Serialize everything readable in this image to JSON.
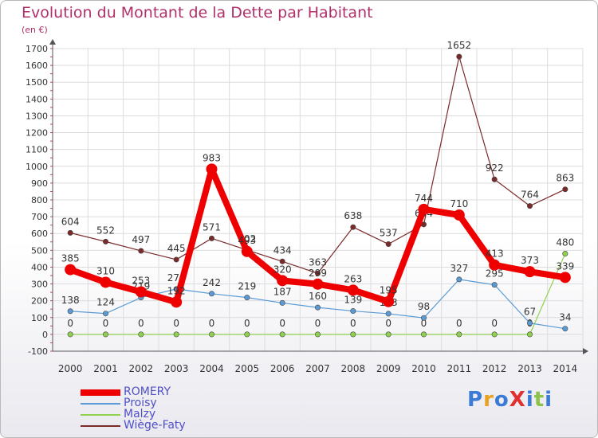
{
  "title": "Evolution du Montant de la Dette par Habitant",
  "subtitle": "(en €)",
  "logo": {
    "text": "ProXiti",
    "colors": [
      "#3a7bd5",
      "#e8a21d",
      "#3a7bd5",
      "#e03030",
      "#3a7bd5",
      "#8bc34a",
      "#3a7bd5"
    ]
  },
  "chart_data": {
    "type": "line",
    "title": "Evolution du Montant de la Dette par Habitant",
    "ylabel": "(en €)",
    "xlabel": "",
    "ylim": [
      -100,
      1700
    ],
    "yticks": [
      -100,
      0,
      100,
      200,
      300,
      400,
      500,
      600,
      700,
      800,
      900,
      1000,
      1100,
      1200,
      1300,
      1400,
      1500,
      1600,
      1700
    ],
    "x": [
      "2000",
      "2001",
      "2002",
      "2003",
      "2004",
      "2005",
      "2006",
      "2007",
      "2008",
      "2009",
      "2010",
      "2011",
      "2012",
      "2013",
      "2014"
    ],
    "grid": true,
    "legend_position": "bottom-left",
    "series": [
      {
        "name": "Wiège-Faty",
        "color": "#7b2a2a",
        "values": [
          604,
          552,
          497,
          445,
          571,
          502,
          434,
          363,
          638,
          537,
          654,
          1652,
          922,
          764,
          863
        ]
      },
      {
        "name": "Malzy",
        "color": "#8fd14f",
        "values": [
          0,
          0,
          0,
          0,
          0,
          0,
          0,
          0,
          0,
          0,
          0,
          0,
          0,
          0,
          480
        ]
      },
      {
        "name": "Proisy",
        "color": "#5b9bd5",
        "values": [
          138,
          124,
          219,
          270,
          242,
          219,
          187,
          160,
          139,
          123,
          98,
          327,
          295,
          67,
          34
        ]
      },
      {
        "name": "ROMERY",
        "color": "#ee0000",
        "values": [
          385,
          310,
          253,
          192,
          983,
          493,
          320,
          299,
          263,
          195,
          744,
          710,
          413,
          373,
          339
        ]
      }
    ],
    "legend": [
      "ROMERY",
      "Proisy",
      "Malzy",
      "Wiège-Faty"
    ]
  }
}
